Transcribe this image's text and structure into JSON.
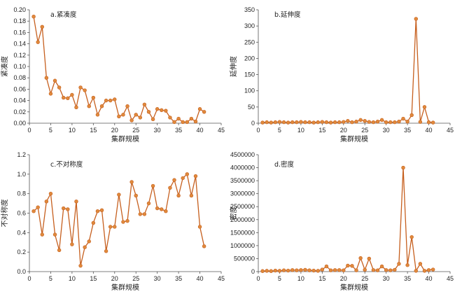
{
  "style": {
    "line_color": "#c65f1e",
    "marker_color": "#e08a3c",
    "axis_color": "#555555"
  },
  "chart_data": [
    {
      "type": "line",
      "title": "a.紧凑度",
      "xlabel": "集群规模",
      "ylabel": "紧凑度",
      "xlim": [
        0,
        45
      ],
      "ylim": [
        0,
        0.2
      ],
      "xticks": [
        0,
        5,
        10,
        15,
        20,
        25,
        30,
        35,
        40,
        45
      ],
      "yticks": [
        0,
        0.02,
        0.04,
        0.06,
        0.08,
        0.1,
        0.12,
        0.14,
        0.16,
        0.18,
        0.2
      ],
      "ytick_labels": [
        "0.00",
        "0.02",
        "0.04",
        "0.06",
        "0.08",
        "0.10",
        "0.12",
        "0.14",
        "0.16",
        "0.18",
        "0.20"
      ],
      "x": [
        1,
        2,
        3,
        4,
        5,
        6,
        7,
        8,
        9,
        10,
        11,
        12,
        13,
        14,
        15,
        16,
        17,
        18,
        19,
        20,
        21,
        22,
        23,
        24,
        25,
        26,
        27,
        28,
        29,
        30,
        31,
        32,
        33,
        34,
        35,
        36,
        37,
        38,
        39,
        40,
        41
      ],
      "values": [
        0.188,
        0.143,
        0.17,
        0.08,
        0.052,
        0.075,
        0.063,
        0.045,
        0.044,
        0.05,
        0.028,
        0.063,
        0.058,
        0.03,
        0.045,
        0.015,
        0.03,
        0.04,
        0.04,
        0.042,
        0.012,
        0.015,
        0.03,
        0.005,
        0.015,
        0.01,
        0.033,
        0.02,
        0.007,
        0.025,
        0.023,
        0.022,
        0.01,
        0.002,
        0.008,
        0.002,
        0.002,
        0.008,
        0.003,
        0.025,
        0.02
      ]
    },
    {
      "type": "line",
      "title": "b.延伸度",
      "xlabel": "集群规模",
      "ylabel": "延伸度",
      "xlim": [
        0,
        45
      ],
      "ylim": [
        0,
        350
      ],
      "xticks": [
        0,
        5,
        10,
        15,
        20,
        25,
        30,
        35,
        40,
        45
      ],
      "yticks": [
        0,
        50,
        100,
        150,
        200,
        250,
        300,
        350
      ],
      "ytick_labels": [
        "0",
        "50",
        "100",
        "150",
        "200",
        "250",
        "300",
        "350"
      ],
      "x": [
        1,
        2,
        3,
        4,
        5,
        6,
        7,
        8,
        9,
        10,
        11,
        12,
        13,
        14,
        15,
        16,
        17,
        18,
        19,
        20,
        21,
        22,
        23,
        24,
        25,
        26,
        27,
        28,
        29,
        30,
        31,
        32,
        33,
        34,
        35,
        36,
        37,
        38,
        39,
        40,
        41
      ],
      "values": [
        2,
        3,
        2,
        3,
        4,
        3,
        2,
        3,
        3,
        4,
        3,
        3,
        2,
        3,
        4,
        3,
        2,
        3,
        3,
        4,
        7,
        3,
        5,
        10,
        7,
        4,
        3,
        5,
        10,
        3,
        3,
        3,
        5,
        14,
        5,
        25,
        322,
        4,
        50,
        3,
        2
      ]
    },
    {
      "type": "line",
      "title": "c.不对称度",
      "xlabel": "集群规模",
      "ylabel": "不对称度",
      "xlim": [
        0,
        45
      ],
      "ylim": [
        0,
        1.2
      ],
      "xticks": [
        0,
        5,
        10,
        15,
        20,
        25,
        30,
        35,
        40,
        45
      ],
      "yticks": [
        0,
        0.2,
        0.4,
        0.6,
        0.8,
        1.0,
        1.2
      ],
      "ytick_labels": [
        "0.0",
        "0.2",
        "0.4",
        "0.6",
        "0.8",
        "1.0",
        "1.2"
      ],
      "x": [
        1,
        2,
        3,
        4,
        5,
        6,
        7,
        8,
        9,
        10,
        11,
        12,
        13,
        14,
        15,
        16,
        17,
        18,
        19,
        20,
        21,
        22,
        23,
        24,
        25,
        26,
        27,
        28,
        29,
        30,
        31,
        32,
        33,
        34,
        35,
        36,
        37,
        38,
        39,
        40,
        41
      ],
      "values": [
        0.62,
        0.66,
        0.38,
        0.72,
        0.8,
        0.38,
        0.22,
        0.65,
        0.64,
        0.28,
        0.72,
        0.06,
        0.25,
        0.31,
        0.5,
        0.62,
        0.63,
        0.21,
        0.46,
        0.46,
        0.79,
        0.51,
        0.52,
        0.92,
        0.78,
        0.59,
        0.59,
        0.7,
        0.88,
        0.65,
        0.64,
        0.62,
        0.86,
        0.94,
        0.78,
        0.96,
        1.0,
        0.78,
        0.98,
        0.46,
        0.26
      ]
    },
    {
      "type": "line",
      "title": "d.密度",
      "xlabel": "集群规模",
      "ylabel": "密度",
      "xlim": [
        0,
        45
      ],
      "ylim": [
        0,
        4500000
      ],
      "xticks": [
        0,
        5,
        10,
        15,
        20,
        25,
        30,
        35,
        40,
        45
      ],
      "yticks": [
        0,
        500000,
        1000000,
        1500000,
        2000000,
        2500000,
        3000000,
        3500000,
        4000000,
        4500000
      ],
      "ytick_labels": [
        "0",
        "500000",
        "1000000",
        "1500000",
        "2000000",
        "2500000",
        "3000000",
        "3500000",
        "4000000",
        "4500000"
      ],
      "x": [
        1,
        2,
        3,
        4,
        5,
        6,
        7,
        8,
        9,
        10,
        11,
        12,
        13,
        14,
        15,
        16,
        17,
        18,
        19,
        20,
        21,
        22,
        23,
        24,
        25,
        26,
        27,
        28,
        29,
        30,
        31,
        32,
        33,
        34,
        35,
        36,
        37,
        38,
        39,
        40,
        41
      ],
      "values": [
        20000,
        30000,
        20000,
        40000,
        30000,
        50000,
        40000,
        60000,
        50000,
        60000,
        70000,
        50000,
        40000,
        30000,
        80000,
        200000,
        50000,
        60000,
        60000,
        50000,
        230000,
        220000,
        50000,
        520000,
        70000,
        500000,
        60000,
        50000,
        200000,
        60000,
        50000,
        70000,
        300000,
        4000000,
        250000,
        1330000,
        30000,
        300000,
        30000,
        60000,
        80000
      ]
    }
  ]
}
